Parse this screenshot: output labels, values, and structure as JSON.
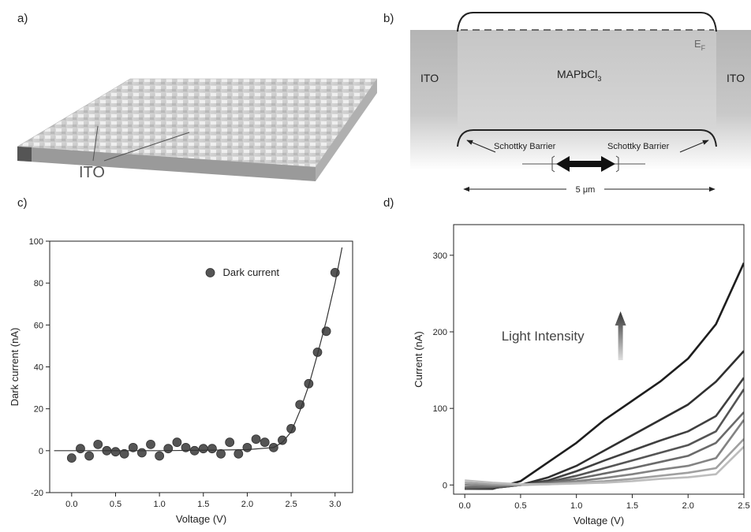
{
  "panels": {
    "a": {
      "label": "a)",
      "ito": "ITO"
    },
    "b": {
      "label": "b)",
      "left": "ITO",
      "right": "ITO",
      "material": {
        "text": "MAPbCl",
        "subscript": "3"
      },
      "fermi": {
        "text": "E",
        "subscript": "F"
      },
      "barrier_left": "Schottky Barrier",
      "barrier_right": "Schottky Barrier",
      "width": "5 μm"
    }
  },
  "chart_data": [
    {
      "type": "scatter",
      "panel_label": "c)",
      "xlabel": "Voltage (V)",
      "ylabel": "Dark current (nA)",
      "xlim": [
        -0.25,
        3.2
      ],
      "ylim": [
        -20,
        100
      ],
      "xticks": [
        {
          "value": 0,
          "label": "0.0"
        },
        {
          "value": 0.5,
          "label": "0.5"
        },
        {
          "value": 1,
          "label": "1.0"
        },
        {
          "value": 1.5,
          "label": "1.5"
        },
        {
          "value": 2,
          "label": "2.0"
        },
        {
          "value": 2.5,
          "label": "2.5"
        },
        {
          "value": 3,
          "label": "3.0"
        }
      ],
      "yticks": [
        -20,
        0,
        20,
        40,
        60,
        80,
        100
      ],
      "legend": "upper center",
      "series": [
        {
          "name": "Dark current",
          "style": "marker",
          "color": "#555555",
          "x": [
            0,
            0.1,
            0.2,
            0.3,
            0.4,
            0.5,
            0.6,
            0.7,
            0.8,
            0.9,
            1.0,
            1.1,
            1.2,
            1.3,
            1.4,
            1.5,
            1.6,
            1.7,
            1.8,
            1.9,
            2.0,
            2.1,
            2.2,
            2.3,
            2.4,
            2.5,
            2.6,
            2.7,
            2.8,
            2.9,
            3.0
          ],
          "values": [
            -3.5,
            1,
            -2.5,
            3,
            0,
            -0.5,
            -1.5,
            1.5,
            -1,
            3,
            -2.5,
            1,
            4,
            1.5,
            0,
            1,
            1,
            -1.5,
            4,
            -1.5,
            1.5,
            5.5,
            4,
            1.5,
            5,
            10.5,
            22,
            32,
            47,
            57,
            85
          ]
        },
        {
          "style": "line",
          "color": "#333333",
          "x": [
            -0.2,
            0.5,
            1.0,
            1.5,
            2.0,
            2.3,
            2.4,
            2.5,
            2.6,
            2.7,
            2.8,
            2.9,
            3.0,
            3.08
          ],
          "values": [
            0,
            0,
            0,
            0.2,
            0.5,
            1.5,
            4,
            9,
            19,
            31,
            46,
            62,
            80,
            97
          ]
        }
      ]
    },
    {
      "type": "line",
      "panel_label": "d)",
      "xlabel": "Voltage (V)",
      "ylabel": "Current (nA)",
      "annotation": "Light Intensity",
      "xlim": [
        -0.1,
        2.5
      ],
      "ylim": [
        -12,
        340
      ],
      "xticks": [
        {
          "value": 0,
          "label": "0.0"
        },
        {
          "value": 0.5,
          "label": "0.5"
        },
        {
          "value": 1,
          "label": "1.0"
        },
        {
          "value": 1.5,
          "label": "1.5"
        },
        {
          "value": 2,
          "label": "2.0"
        },
        {
          "value": 2.5,
          "label": "2.5"
        }
      ],
      "yticks": [
        0,
        100,
        200,
        300
      ],
      "x": [
        0,
        0.25,
        0.5,
        0.75,
        1.0,
        1.25,
        1.5,
        1.75,
        2.0,
        2.25,
        2.5
      ],
      "series": [
        {
          "color": "#1e1e1e",
          "values": [
            -5,
            -5,
            5,
            30,
            55,
            85,
            110,
            135,
            165,
            210,
            290
          ]
        },
        {
          "color": "#303030",
          "values": [
            -5,
            -4,
            0,
            10,
            25,
            45,
            65,
            85,
            105,
            135,
            175
          ]
        },
        {
          "color": "#404040",
          "values": [
            -5,
            -4,
            0,
            6,
            18,
            32,
            45,
            58,
            70,
            90,
            140
          ]
        },
        {
          "color": "#555555",
          "values": [
            -4,
            -3,
            0,
            4,
            12,
            22,
            32,
            42,
            52,
            70,
            125
          ]
        },
        {
          "color": "#6a6a6a",
          "values": [
            -3,
            -2,
            0,
            3,
            8,
            15,
            22,
            30,
            38,
            55,
            95
          ]
        },
        {
          "color": "#838383",
          "values": [
            0,
            -1,
            0,
            2,
            5,
            9,
            14,
            20,
            25,
            35,
            85
          ]
        },
        {
          "color": "#a0a0a0",
          "values": [
            3,
            1,
            0,
            1,
            3,
            5,
            8,
            12,
            16,
            22,
            60
          ]
        },
        {
          "color": "#bdbdbd",
          "values": [
            6,
            3,
            1,
            1,
            2,
            3,
            5,
            8,
            10,
            14,
            50
          ]
        }
      ]
    }
  ]
}
